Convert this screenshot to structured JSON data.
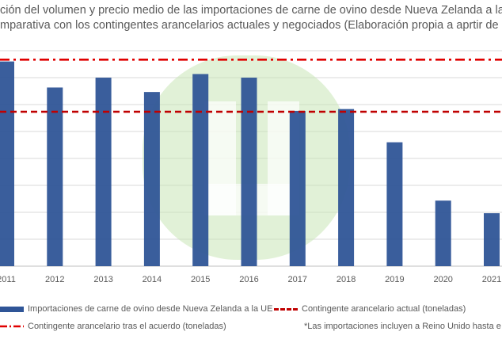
{
  "title_lines": [
    "ción del volumen y precio medio de las importaciones de carne de ovino desde Nueva Zelanda a la UE",
    "mparativa con los contingentes arancelarios actuales y negociados (Elaboración propia a aprtir de Data"
  ],
  "colors": {
    "bars": "#2f5597",
    "current_quota": "#c00000",
    "new_quota": "#e00000",
    "gridline": "#d9d9d9",
    "watermark": "#c9e6b6"
  },
  "watermark_icon": "green-u-logo-watermark",
  "chart_data": {
    "type": "bar",
    "categories": [
      "2011",
      "2012",
      "2013",
      "2014",
      "2015",
      "2016",
      "2017",
      "2018",
      "2019",
      "2020",
      "2021"
    ],
    "series": [
      {
        "name": "Importaciones de carne de ovino desde Nueva Zelanda a la UE",
        "type": "bar",
        "values": [
          228000,
          199000,
          210000,
          194000,
          214000,
          210000,
          173000,
          175000,
          138000,
          73000,
          59000
        ]
      },
      {
        "name": "Contingente arancelario actual (toneladas)",
        "type": "line",
        "style": "dashed",
        "values": [
          172000,
          172000,
          172000,
          172000,
          172000,
          172000,
          172000,
          172000,
          172000,
          172000,
          172000
        ]
      },
      {
        "name": "Contingente arancelario tras el acuerdo (toneladas)",
        "type": "line",
        "style": "dash-dot",
        "values": [
          230000,
          230000,
          230000,
          230000,
          230000,
          230000,
          230000,
          230000,
          230000,
          230000,
          230000
        ]
      }
    ],
    "ylim": [
      0,
      240000
    ],
    "grid": true,
    "legend_position": "bottom"
  },
  "legend": {
    "items": [
      {
        "label": "Importaciones de carne de ovino desde Nueva Zelanda a la UE"
      },
      {
        "label": "Contingente arancelario actual (toneladas)"
      },
      {
        "label": "Contingente arancelario tras el acuerdo (toneladas)"
      }
    ],
    "note": "*Las importaciones incluyen a Reino Unido hasta e"
  }
}
